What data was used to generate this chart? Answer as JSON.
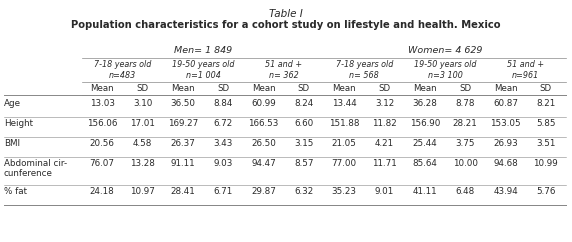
{
  "title_line1": "Table I",
  "title_line2": "Population characteristics for a cohort study on lifestyle and health. Mexico",
  "men_header": "Men= 1 849",
  "women_header": "Women= 4 629",
  "subgroup_labels": [
    "7-18 years old\nn=483",
    "19-50 years old\nn=1 004",
    "51 and +\nn= 362",
    "7-18 years old\nn= 568",
    "19-50 years old\nn=3 100",
    "51 and +\nn=961"
  ],
  "col_headers": [
    "Mean",
    "SD",
    "Mean",
    "SD",
    "Mean",
    "SD",
    "Mean",
    "SD",
    "Mean",
    "SD",
    "Mean",
    "SD"
  ],
  "row_labels": [
    "Age",
    "Height",
    "BMI",
    "Abdominal cir-\ncunference",
    "% fat"
  ],
  "data_str_vals": [
    [
      "13.03",
      "3.10",
      "36.50",
      "8.84",
      "60.99",
      "8.24",
      "13.44",
      "3.12",
      "36.28",
      "8.78",
      "60.87",
      "8.21"
    ],
    [
      "156.06",
      "17.01",
      "169.27",
      "6.72",
      "166.53",
      "6.60",
      "151.88",
      "11.82",
      "156.90",
      "28.21",
      "153.05",
      "5.85"
    ],
    [
      "20.56",
      "4.58",
      "26.37",
      "3.43",
      "26.50",
      "3.15",
      "21.05",
      "4.21",
      "25.44",
      "3.75",
      "26.93",
      "3.51"
    ],
    [
      "76.07",
      "13.28",
      "91.11",
      "9.03",
      "94.47",
      "8.57",
      "77.00",
      "11.71",
      "85.64",
      "10.00",
      "94.68",
      "10.99"
    ],
    [
      "24.18",
      "10.97",
      "28.41",
      "6.71",
      "29.87",
      "6.32",
      "35.23",
      "9.01",
      "41.11",
      "6.48",
      "43.94",
      "5.76"
    ]
  ],
  "bg_color": "#ffffff",
  "text_color": "#2a2a2a",
  "line_color": "#888888"
}
